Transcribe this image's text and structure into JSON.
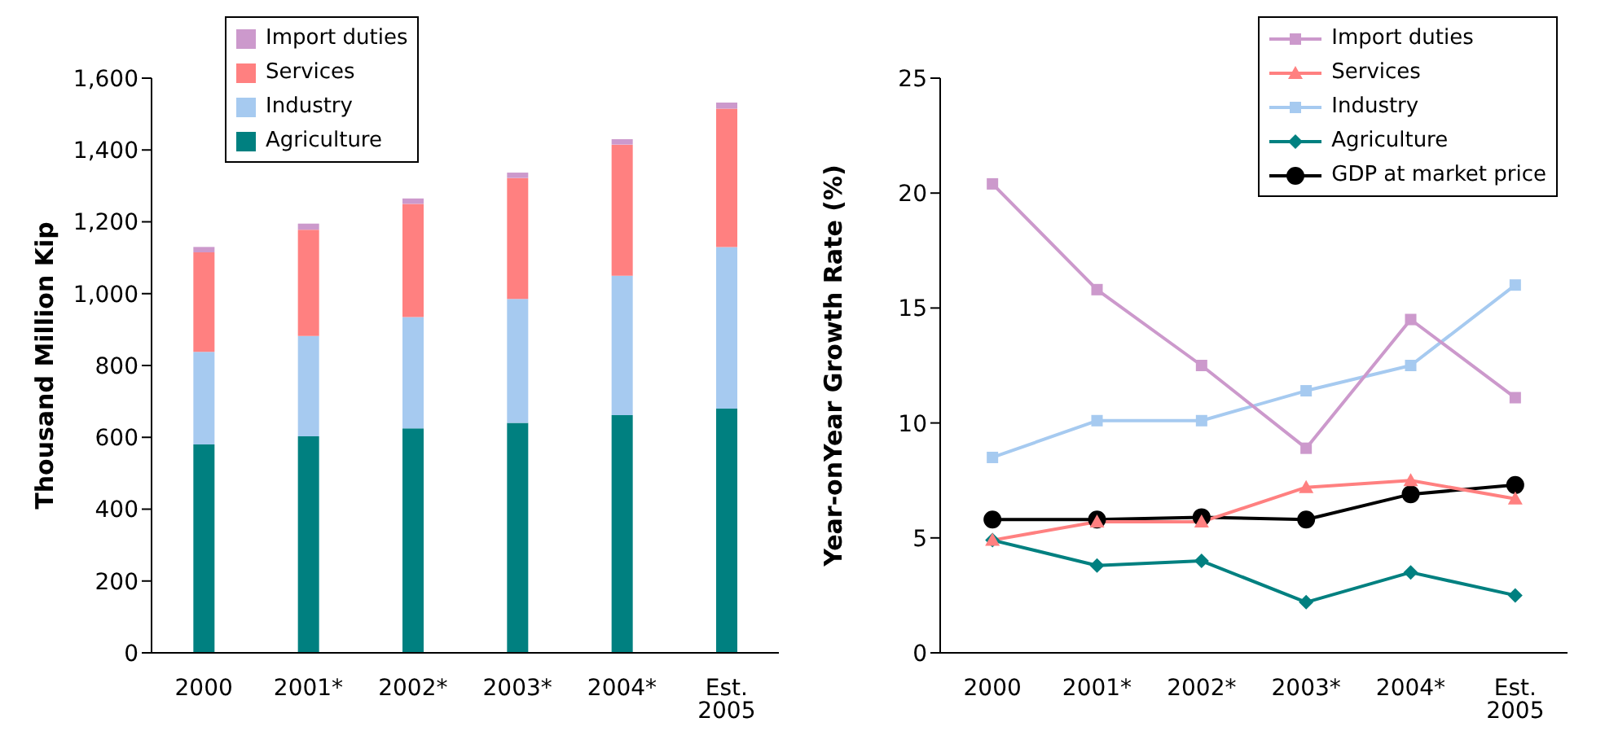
{
  "chart_data": [
    {
      "type": "bar",
      "stacked": true,
      "categories": [
        "2000",
        "2001*",
        "2002*",
        "2003*",
        "2004*",
        "Est. 2005"
      ],
      "ylabel": "Thousand Million Kip",
      "ylim": [
        0,
        1600
      ],
      "yticks": [
        0,
        200,
        400,
        600,
        800,
        {
          "value": 1000,
          "label": "1,000"
        },
        {
          "value": 1200,
          "label": "1,200"
        },
        {
          "value": 1400,
          "label": "1,400"
        },
        {
          "value": 1600,
          "label": "1,600"
        }
      ],
      "legend": "top left",
      "series": [
        {
          "name": "Agriculture",
          "color": "#008080",
          "values": [
            580,
            603,
            625,
            640,
            662,
            680
          ]
        },
        {
          "name": "Industry",
          "color": "#a6caf0",
          "values": [
            258,
            279,
            310,
            345,
            388,
            450
          ]
        },
        {
          "name": "Services",
          "color": "#ff8080",
          "values": [
            277,
            296,
            315,
            337,
            365,
            385
          ]
        },
        {
          "name": "Import duties",
          "color": "#cc99cc",
          "values": [
            15,
            17,
            15,
            15,
            15,
            17
          ]
        }
      ]
    },
    {
      "type": "line",
      "categories": [
        "2000",
        "2001*",
        "2002*",
        "2003*",
        "2004*",
        "Est. 2005"
      ],
      "ylabel": "Year-onYear Growth Rate (%)",
      "ylim": [
        0,
        25
      ],
      "yticks": [
        0,
        5,
        10,
        15,
        20,
        25
      ],
      "legend": "top right",
      "line_style": "solid",
      "series": [
        {
          "name": "Import duties",
          "color": "#cc99cc",
          "marker": "square",
          "values": [
            20.4,
            15.8,
            12.5,
            8.9,
            14.5,
            11.1
          ]
        },
        {
          "name": "Services",
          "color": "#ff8080",
          "marker": "triangle",
          "values": [
            4.9,
            5.7,
            5.7,
            7.2,
            7.5,
            6.7
          ]
        },
        {
          "name": "Industry",
          "color": "#a6caf0",
          "marker": "square",
          "values": [
            8.5,
            10.1,
            10.1,
            11.4,
            12.5,
            16.0
          ]
        },
        {
          "name": "Agriculture",
          "color": "#008080",
          "marker": "diamond",
          "values": [
            4.9,
            3.8,
            4.0,
            2.2,
            3.5,
            2.5
          ]
        },
        {
          "name": "GDP at market price",
          "color": "#000000",
          "marker": "circle",
          "values": [
            5.8,
            5.8,
            5.9,
            5.8,
            6.9,
            7.3
          ]
        }
      ]
    }
  ]
}
